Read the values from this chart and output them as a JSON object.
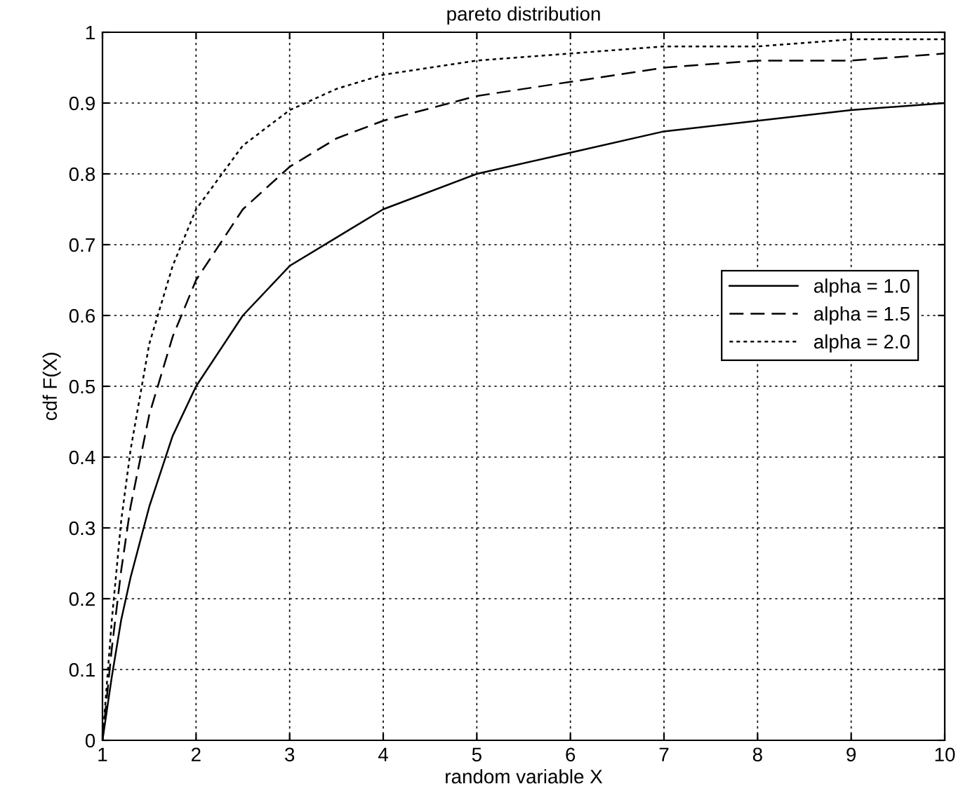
{
  "chart_data": {
    "type": "line",
    "title": "pareto distribution",
    "xlabel": "random variable X",
    "ylabel": "cdf F(X)",
    "x": [
      1,
      1.1,
      1.2,
      1.3,
      1.5,
      1.75,
      2,
      2.5,
      3,
      3.5,
      4,
      5,
      6,
      7,
      8,
      9,
      10
    ],
    "series": [
      {
        "name": "alpha = 1.0",
        "color": "#000000",
        "line_style": "solid",
        "values": [
          0,
          0.09,
          0.17,
          0.23,
          0.33,
          0.43,
          0.5,
          0.6,
          0.67,
          0.71,
          0.75,
          0.8,
          0.83,
          0.86,
          0.875,
          0.89,
          0.9
        ]
      },
      {
        "name": "alpha = 1.5",
        "color": "#000000",
        "line_style": "dashed",
        "values": [
          0,
          0.13,
          0.24,
          0.33,
          0.46,
          0.57,
          0.65,
          0.75,
          0.81,
          0.85,
          0.875,
          0.91,
          0.93,
          0.95,
          0.96,
          0.96,
          0.97
        ]
      },
      {
        "name": "alpha = 2.0",
        "color": "#000000",
        "line_style": "dotted",
        "values": [
          0,
          0.17,
          0.31,
          0.41,
          0.56,
          0.67,
          0.75,
          0.84,
          0.89,
          0.92,
          0.94,
          0.96,
          0.97,
          0.98,
          0.98,
          0.99,
          0.99
        ]
      }
    ],
    "xlim": [
      1,
      10
    ],
    "xticks": [
      1,
      2,
      3,
      4,
      5,
      6,
      7,
      8,
      9,
      10
    ],
    "ylim": [
      0,
      1
    ],
    "yticks": [
      0,
      0.1,
      0.2,
      0.3,
      0.4,
      0.5,
      0.6,
      0.7,
      0.8,
      0.9,
      1
    ],
    "grid": true,
    "legend": "center right"
  }
}
